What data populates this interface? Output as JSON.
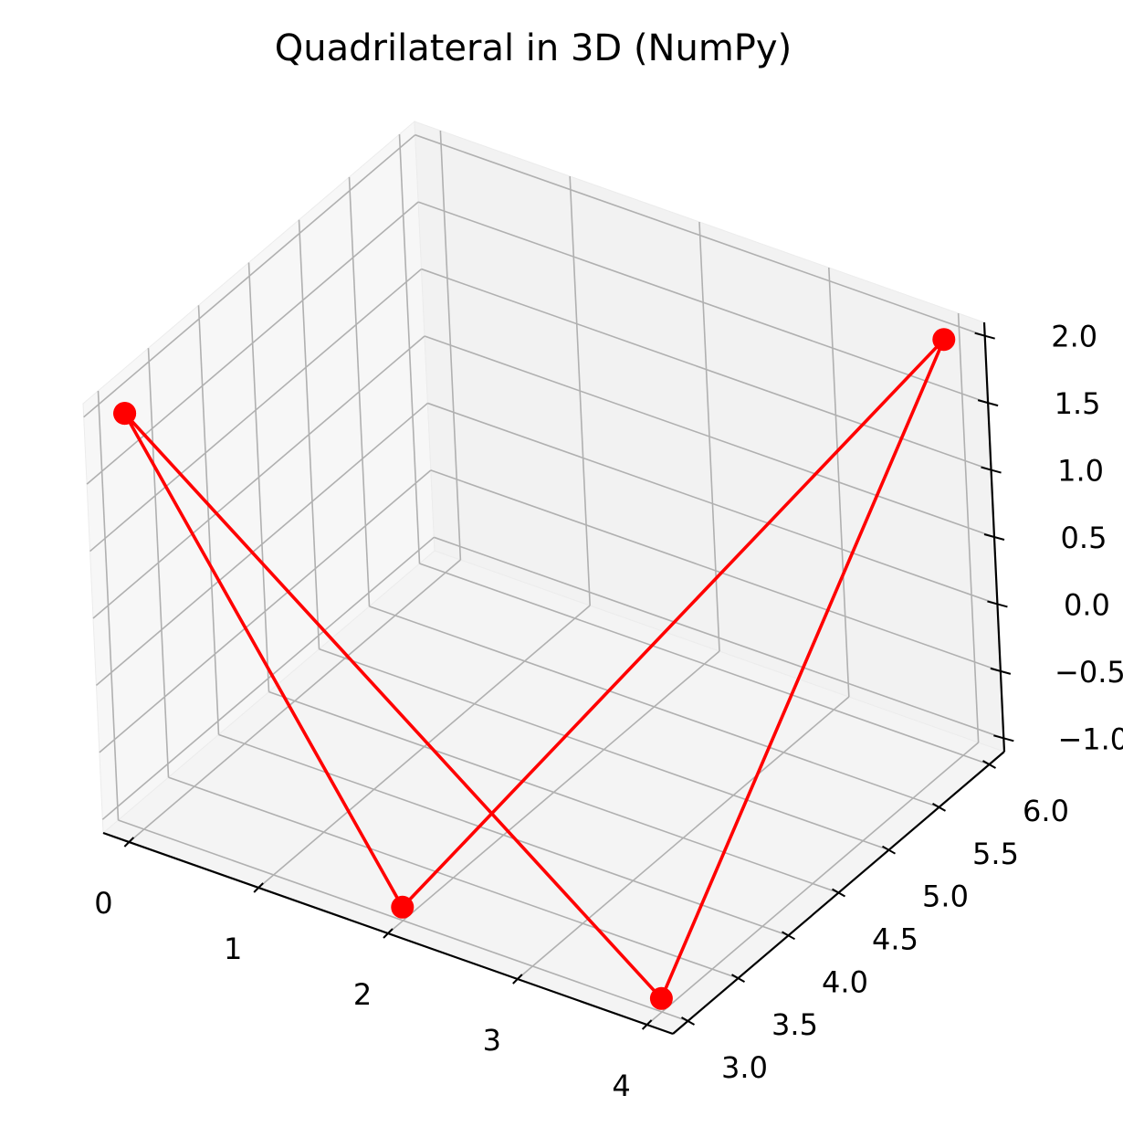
{
  "chart_data": {
    "type": "line3d",
    "title": "Quadrilateral in 3D (NumPy)",
    "xlabel": "",
    "ylabel": "",
    "zlabel": "",
    "xlim": [
      -0.2,
      4.2
    ],
    "ylim": [
      2.85,
      6.15
    ],
    "zlim": [
      -1.1,
      2.1
    ],
    "grid": true,
    "x_ticks": [
      "0",
      "1",
      "2",
      "3",
      "4"
    ],
    "y_ticks": [
      "3.0",
      "3.5",
      "4.0",
      "4.5",
      "5.0",
      "5.5",
      "6.0"
    ],
    "z_ticks": [
      "−1.0",
      "−0.5",
      "0.0",
      "0.5",
      "1.0",
      "1.5",
      "2.0"
    ],
    "series": [
      {
        "color": "#ff0000",
        "marker": "circle",
        "points": [
          {
            "x": 0,
            "y": 3,
            "z": 2
          },
          {
            "x": 2,
            "y": 3,
            "z": -1
          },
          {
            "x": 4,
            "y": 6,
            "z": 2
          },
          {
            "x": 4,
            "y": 3,
            "z": -1
          },
          {
            "x": 0,
            "y": 3,
            "z": 2
          }
        ]
      }
    ]
  },
  "colors": {
    "line": "#ff0000",
    "grid": "#b0b0b0",
    "pane_left": "#f7f7f7",
    "pane_back": "#f2f2f2",
    "pane_floor": "#f4f4f4"
  }
}
